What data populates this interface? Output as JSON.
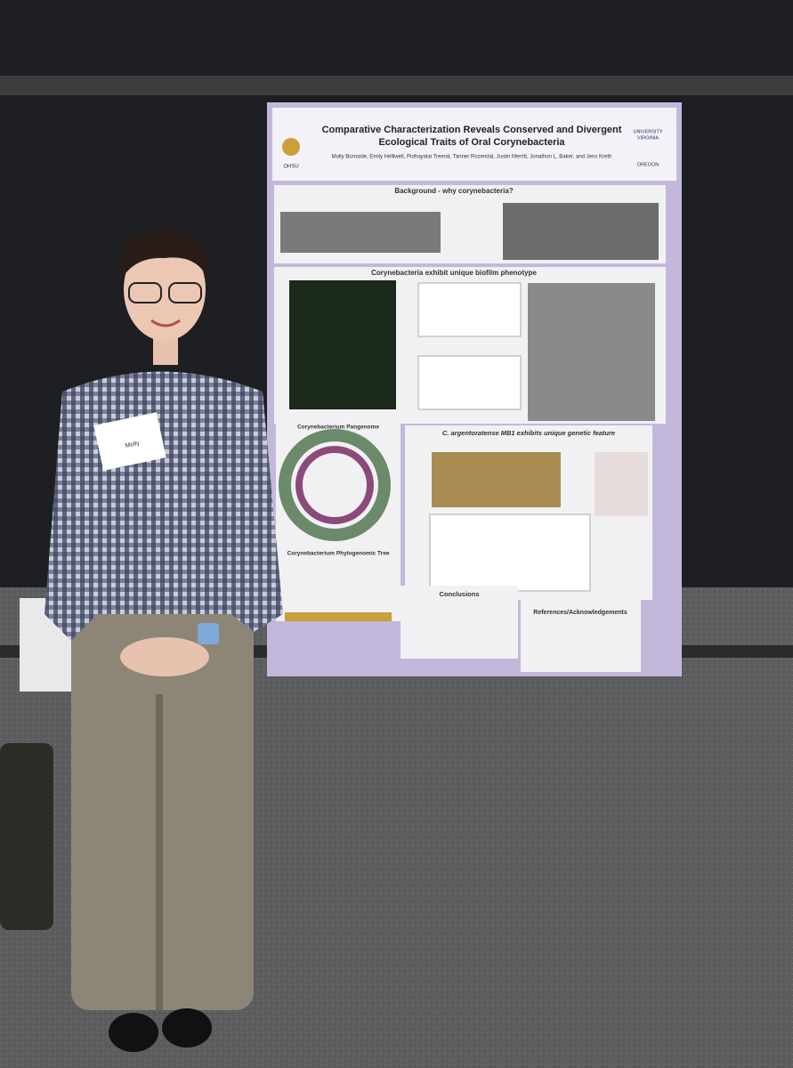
{
  "poster": {
    "title": [
      "Comparative Characterization Reveals Conserved and Divergent",
      "Ecological Traits of Oral Corynebacteria"
    ],
    "authors": "Molly Burnside, Emily Helliwell, Puthayalai Treerat, Tanner Rozendal, Justin Merritt, Jonathon L. Baker, and Jens Kreth",
    "logos": {
      "left": "OHSU",
      "right_top": "UNIVERSITY",
      "right_bottom": "VIRGINIA",
      "oregon": "OREGON"
    },
    "sections": {
      "background": "Background - why corynebacteria?",
      "biofilm": "Corynebacteria exhibit unique biofilm phenotype",
      "pangenome": "Corynebacterium Pangenome",
      "phylo": "Corynebacterium Phylogenomic Tree",
      "genetic": "C. argentoratense MB1 exhibits unique genetic feature",
      "conclusions": "Conclusions",
      "references": "References/Acknowledgements"
    }
  },
  "badge": {
    "name": "Molly"
  }
}
